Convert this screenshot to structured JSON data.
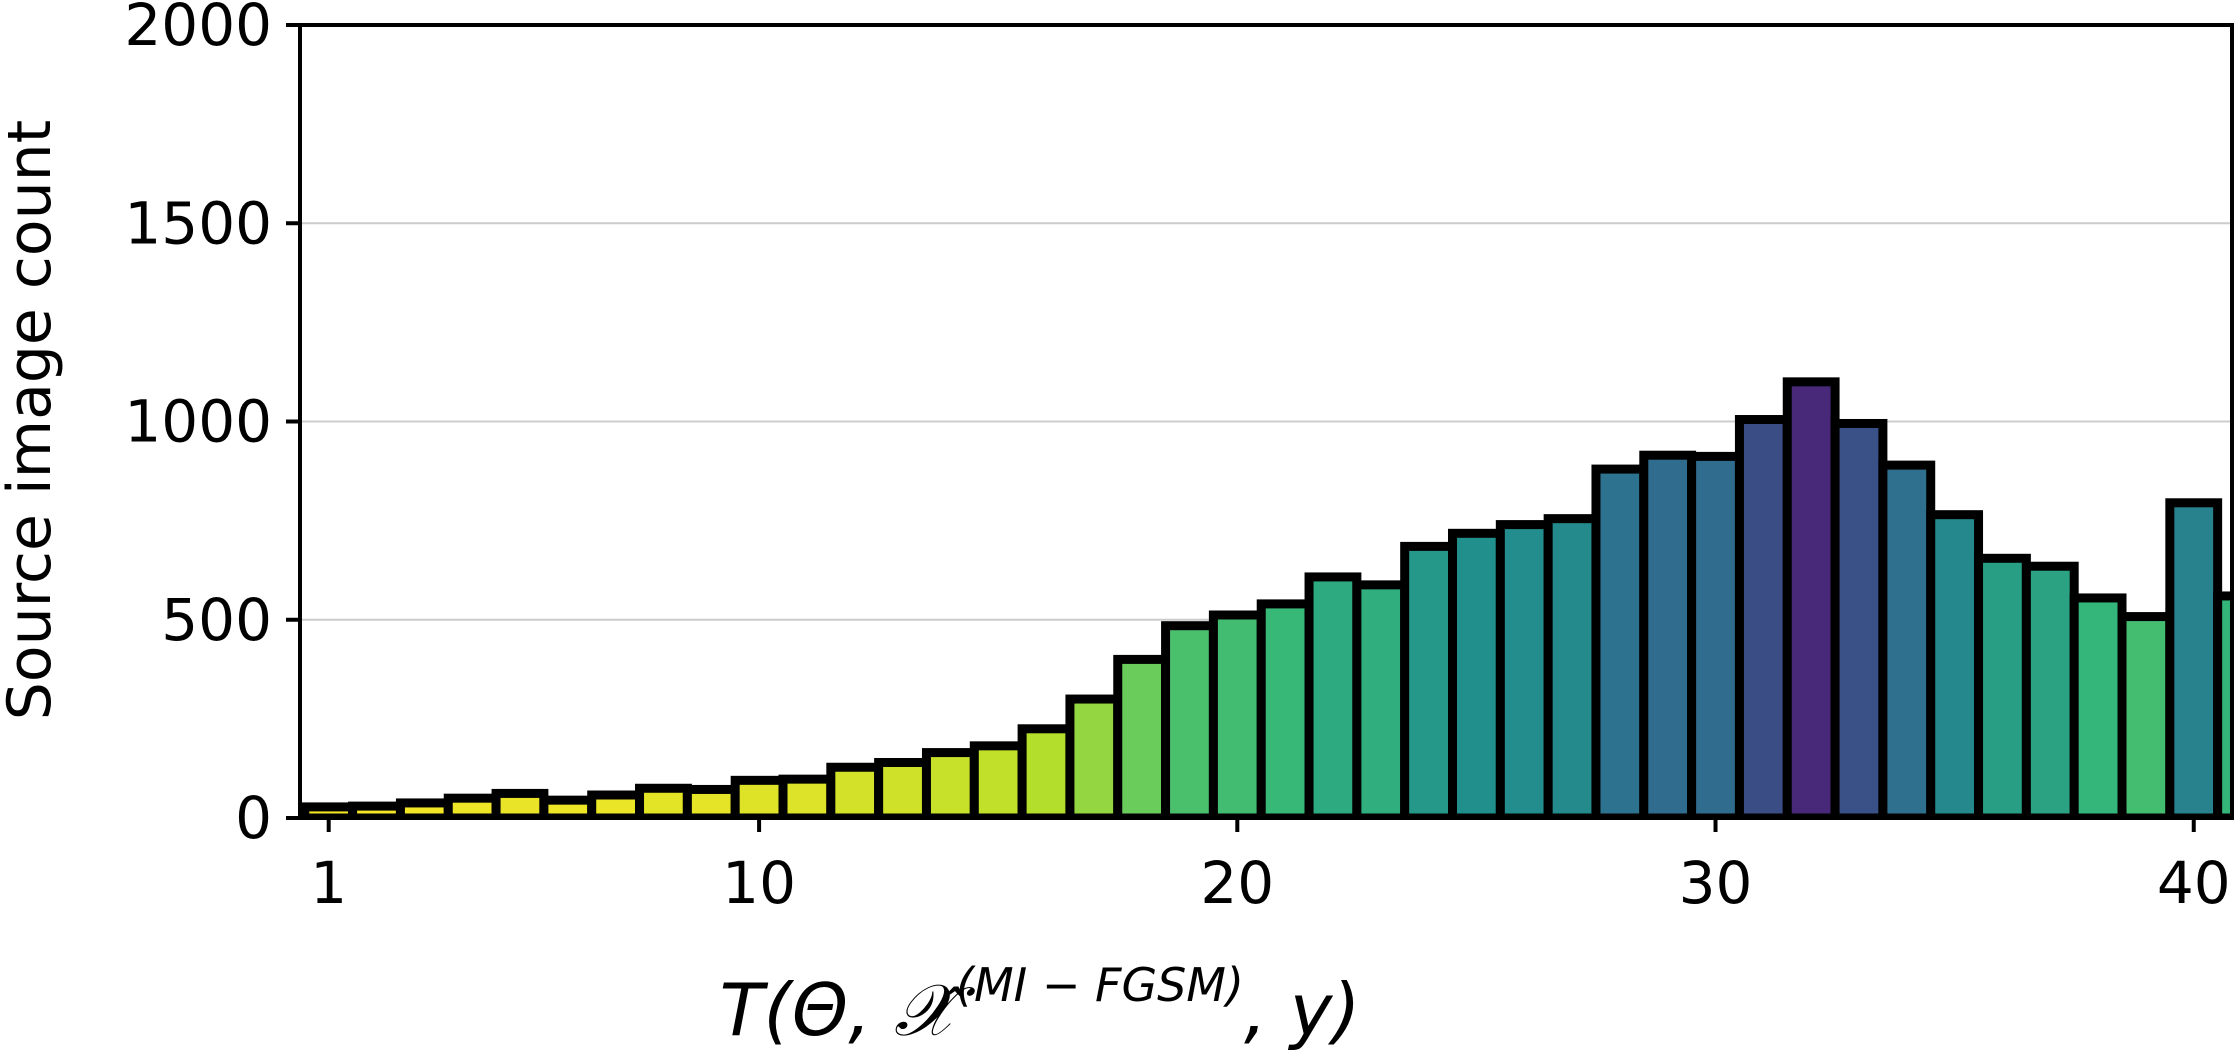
{
  "chart_data": {
    "type": "bar",
    "title": "",
    "xlabel": {
      "prefix": "T(Θ, ",
      "symbol": "𝒳̂",
      "superscript": "(MI − FGSM)",
      "suffix": ", y)"
    },
    "ylabel": "Source image count",
    "x": [
      1,
      2,
      3,
      4,
      5,
      6,
      7,
      8,
      9,
      10,
      11,
      12,
      13,
      14,
      15,
      16,
      17,
      18,
      19,
      20,
      21,
      22,
      23,
      24,
      25,
      26,
      27,
      28,
      29,
      30,
      31,
      32,
      33,
      34,
      35,
      36,
      37,
      38,
      39,
      40,
      41
    ],
    "values": [
      28,
      30,
      38,
      50,
      62,
      45,
      58,
      75,
      72,
      95,
      98,
      128,
      140,
      165,
      182,
      225,
      300,
      400,
      485,
      512,
      540,
      608,
      588,
      685,
      718,
      740,
      755,
      880,
      915,
      912,
      1005,
      1100,
      995,
      890,
      765,
      655,
      635,
      555,
      508,
      795,
      560
    ],
    "xticks": [
      1,
      10,
      20,
      30,
      40
    ],
    "yticks": [
      0,
      500,
      1000,
      1500,
      2000
    ],
    "ylim": [
      0,
      2000
    ],
    "xlim": [
      0.4,
      40.8
    ],
    "grid": "horizontal",
    "colormap": "viridis",
    "color_min": "#fde725",
    "color_mid": "#21918c",
    "color_max": "#482878",
    "bar_edge_color": "#000000"
  }
}
